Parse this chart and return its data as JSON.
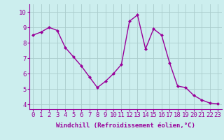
{
  "x": [
    0,
    1,
    2,
    3,
    4,
    5,
    6,
    7,
    8,
    9,
    10,
    11,
    12,
    13,
    14,
    15,
    16,
    17,
    18,
    19,
    20,
    21,
    22,
    23
  ],
  "y": [
    8.5,
    8.7,
    9.0,
    8.8,
    7.7,
    7.1,
    6.5,
    5.8,
    5.1,
    5.5,
    6.0,
    6.6,
    9.4,
    9.8,
    7.6,
    8.9,
    8.5,
    6.7,
    5.2,
    5.1,
    4.6,
    4.3,
    4.1,
    4.05
  ],
  "line_color": "#990099",
  "marker": "D",
  "marker_size": 2.0,
  "bg_color": "#cceeee",
  "grid_color": "#aacccc",
  "xlabel": "Windchill (Refroidissement éolien,°C)",
  "ylabel_ticks": [
    4,
    5,
    6,
    7,
    8,
    9,
    10
  ],
  "xlim": [
    -0.5,
    23.5
  ],
  "ylim": [
    3.7,
    10.5
  ],
  "xtick_labels": [
    "0",
    "1",
    "2",
    "3",
    "4",
    "5",
    "6",
    "7",
    "8",
    "9",
    "10",
    "11",
    "12",
    "13",
    "14",
    "15",
    "16",
    "17",
    "18",
    "19",
    "20",
    "21",
    "22",
    "23"
  ],
  "xlabel_fontsize": 6.5,
  "tick_fontsize": 6.5,
  "axis_color": "#990099",
  "line_width": 1.0
}
